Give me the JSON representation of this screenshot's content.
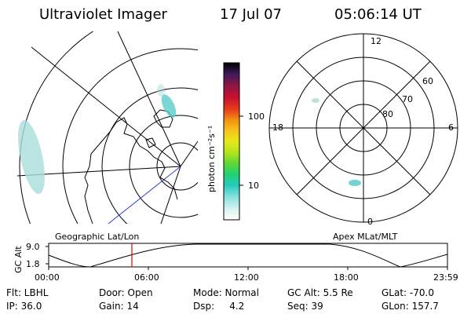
{
  "header": {
    "title": "Ultraviolet Imager",
    "date": "17 Jul 07",
    "time": "05:06:14 UT"
  },
  "colorbar": {
    "unit_label": "photon cm⁻²s⁻¹",
    "ticks": [
      "100",
      "10"
    ],
    "colors": [
      "#000000",
      "#3b1a5a",
      "#8a1648",
      "#c8102e",
      "#e8401a",
      "#f28c13",
      "#f7c21a",
      "#e8e81a",
      "#b5e51d",
      "#5fd834",
      "#1fd36f",
      "#28c9c0",
      "#8fe3e0",
      "#d6f2f0",
      "#ffffff"
    ]
  },
  "polar": {
    "mlt_labels": {
      "top": "12",
      "left": "18",
      "right": "6",
      "bottom": "0"
    },
    "lat_labels": [
      "60",
      "70",
      "80"
    ]
  },
  "timeline": {
    "y_label": "GC Alt",
    "y_ticks": [
      "9.0",
      "1.8"
    ],
    "left_label": "Geographic Lat/Lon",
    "right_label": "Apex MLat/MLT",
    "x_ticks": [
      "00:00",
      "06:00",
      "12:00",
      "18:00",
      "23:59"
    ],
    "marker_color": "#e00000"
  },
  "info_rows": [
    [
      "Flt: LBHL",
      "Door: Open",
      "Mode: Normal",
      "GC Alt: 5.5 Re",
      "GLat: -70.0"
    ],
    [
      "IP: 36.0",
      "Gain: 14",
      "Dsp:     4.2",
      "Seq: 39",
      "GLon: 157.7"
    ]
  ]
}
